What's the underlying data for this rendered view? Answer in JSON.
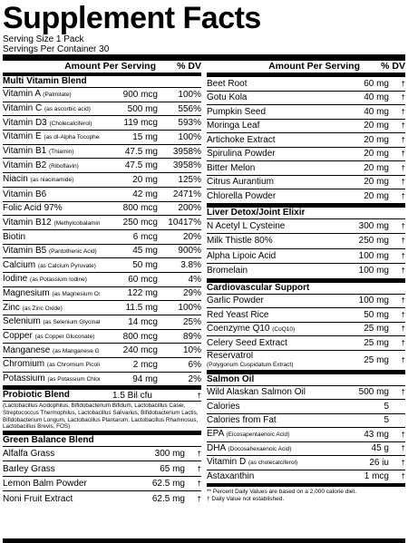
{
  "title": "Supplement Facts",
  "serving_size": "Serving Size 1 Pack",
  "servings_per_container": "Servings Per Container 30",
  "header": {
    "amount": "Amount Per Serving",
    "dv": "% DV"
  },
  "left": {
    "multi": {
      "title": "Multi Vitamin Blend",
      "rows": [
        {
          "name": "Vitamin A",
          "note": "(Palmitate)",
          "amount": "900 mcg",
          "dv": "100%"
        },
        {
          "name": "Vitamin C",
          "note": "(as ascorbic acid)",
          "amount": "500 mg",
          "dv": "556%"
        },
        {
          "name": "Vitamin D3",
          "note": "(Cholecalciferol)",
          "amount": "119 mcg",
          "dv": "593%"
        },
        {
          "name": "Vitamin E",
          "note": "(as dl-Alpha Tocopheryl)",
          "amount": "15 mg",
          "dv": "100%"
        },
        {
          "name": "Vitamin B1",
          "note": "(Thiamin)",
          "amount": "47.5 mg",
          "dv": "3958%"
        },
        {
          "name": "Vitamin B2",
          "note": "(Riboflavin)",
          "amount": "47.5 mg",
          "dv": "3958%"
        },
        {
          "name": "Niacin",
          "note": "(as niacinamide)",
          "amount": "20 mg",
          "dv": "125%"
        },
        {
          "name": "Vitamin B6",
          "note": "",
          "amount": "42 mg",
          "dv": "2471%"
        },
        {
          "name": "Folic Acid 97%",
          "note": "",
          "amount": "800 mcg",
          "dv": "200%"
        },
        {
          "name": "Vitamin B12",
          "note": "(Methylcobalamin)",
          "amount": "250 mcg",
          "dv": "10417%"
        },
        {
          "name": "Biotin",
          "note": "",
          "amount": "6 mcg",
          "dv": "20%"
        },
        {
          "name": "Vitamin B5",
          "note": "(Pantothenic Acid)",
          "amount": "45 mg",
          "dv": "900%"
        },
        {
          "name": "Calcium",
          "note": "(as Calcium Pyruvate)",
          "amount": "50 mg",
          "dv": "3.8%"
        },
        {
          "name": "Iodine",
          "note": "(as Potassium Iodine)",
          "amount": "60 mcg",
          "dv": "4%"
        },
        {
          "name": "Magnesium",
          "note": "(as Magnesium Oxide)",
          "amount": "122 mg",
          "dv": "29%"
        },
        {
          "name": "Zinc",
          "note": "(as Zinc Oxide)",
          "amount": "11.5 mg",
          "dv": "100%"
        },
        {
          "name": "Selenium",
          "note": "(as Selenium Glycinate)",
          "amount": "14 mcg",
          "dv": "25%"
        },
        {
          "name": "Copper",
          "note": "(as Copper Gluconate)",
          "amount": "800 mcg",
          "dv": "89%"
        },
        {
          "name": "Manganese",
          "note": "(as Manganese Gluconate)",
          "amount": "240 mcg",
          "dv": "10%"
        },
        {
          "name": "Chromium",
          "note": "(as Chromium Picolinate)",
          "amount": "2 mcg",
          "dv": "6%"
        },
        {
          "name": "Potassium",
          "note": "(as Potassium Chloride)",
          "amount": "94 mg",
          "dv": "2%"
        }
      ]
    },
    "probiotic": {
      "title": "Probiotic Blend",
      "amount": "1.5 Bil cfu",
      "dv": "†",
      "note": "(Lactobacillus Acidophilus, Bifidobacterium Bifidum, Lactobacillus Casei, Streptococcus Thermophilus, Lactobacillus Salivarius, Bifidobacterium Lactis, Bifidobacterium Longum, Lactobacillus Plantarum, Lactobacillus Rhamnosus, Lactobacillus Brevis, FOS)"
    },
    "green": {
      "title": "Green Balance Blend",
      "rows": [
        {
          "name": "Alfalfa Grass",
          "note": "",
          "amount": "300 mg",
          "dv": "†"
        },
        {
          "name": "Barley Grass",
          "note": "",
          "amount": "65 mg",
          "dv": "†"
        },
        {
          "name": "Lemon Balm Powder",
          "note": "",
          "amount": "62.5 mg",
          "dv": "†"
        },
        {
          "name": "Noni Fruit Extract",
          "note": "",
          "amount": "62.5 mg",
          "dv": "†"
        }
      ]
    }
  },
  "right": {
    "top": {
      "rows": [
        {
          "name": "Beet Root",
          "note": "",
          "amount": "60 mg",
          "dv": "†"
        },
        {
          "name": "Gotu Kola",
          "note": "",
          "amount": "40 mg",
          "dv": "†"
        },
        {
          "name": "Pumpkin Seed",
          "note": "",
          "amount": "40 mg",
          "dv": "†"
        },
        {
          "name": "Moringa Leaf",
          "note": "",
          "amount": "20 mg",
          "dv": "†"
        },
        {
          "name": "Artichoke Extract",
          "note": "",
          "amount": "20 mg",
          "dv": "†"
        },
        {
          "name": "Spirulina Powder",
          "note": "",
          "amount": "20 mg",
          "dv": "†"
        },
        {
          "name": "Bitter Melon",
          "note": "",
          "amount": "20 mg",
          "dv": "†"
        },
        {
          "name": "Citrus Aurantium",
          "note": "",
          "amount": "20 mg",
          "dv": "†"
        },
        {
          "name": "Chlorella Powder",
          "note": "",
          "amount": "20 mg",
          "dv": "†"
        }
      ]
    },
    "liver": {
      "title": "Liver Detox/Joint Elixir",
      "rows": [
        {
          "name": "N Acetyl L Cysteine",
          "note": "",
          "amount": "300 mg",
          "dv": "†"
        },
        {
          "name": "Milk Thistle 80%",
          "note": "",
          "amount": "250 mg",
          "dv": "†"
        },
        {
          "name": "Alpha Lipoic Acid",
          "note": "",
          "amount": "100 mg",
          "dv": "†"
        },
        {
          "name": "Bromelain",
          "note": "",
          "amount": "100 mg",
          "dv": "†"
        }
      ]
    },
    "cardio": {
      "title": "Cardiovascular Support",
      "rows": [
        {
          "name": "Garlic Powder",
          "note": "",
          "amount": "100 mg",
          "dv": "†"
        },
        {
          "name": "Red Yeast Rice",
          "note": "",
          "amount": "50 mg",
          "dv": "†"
        },
        {
          "name": "Coenzyme Q10",
          "note": "(CoQ10)",
          "amount": "25 mg",
          "dv": "†"
        },
        {
          "name": "Celery Seed Extract",
          "note": "",
          "amount": "25 mg",
          "dv": "†"
        }
      ],
      "resveratrol": {
        "name": "Reservatrol",
        "note": "(Polygonum Cuspidatum Extract)",
        "amount": "25 mg",
        "dv": "†"
      }
    },
    "salmon": {
      "title": "Salmon Oil",
      "rows": [
        {
          "name": "Wild Alaskan Salmon Oil",
          "note": "",
          "amount": "500 mg",
          "dv": "†"
        },
        {
          "name": "Calories",
          "note": "",
          "amount": "5",
          "dv": ""
        },
        {
          "name": "Calories from Fat",
          "note": "",
          "amount": "5",
          "dv": ""
        },
        {
          "name": "EPA",
          "note": "(Eicosapentaenoic Acid)",
          "amount": "43 mg",
          "dv": "†"
        },
        {
          "name": "DHA",
          "note": "(Docosahexaenoic Acid)",
          "amount": "45 g",
          "dv": "†"
        },
        {
          "name": "Vitamin D",
          "note": "(as cholecalciferol)",
          "amount": "26 iu",
          "dv": "†"
        },
        {
          "name": "Astaxanthin",
          "note": "",
          "amount": "1 mcg",
          "dv": "†"
        }
      ]
    },
    "footnotes": [
      "** Percent Daily Values are based on a 2,000 calorie diet.",
      "† Daily Value not established."
    ]
  }
}
